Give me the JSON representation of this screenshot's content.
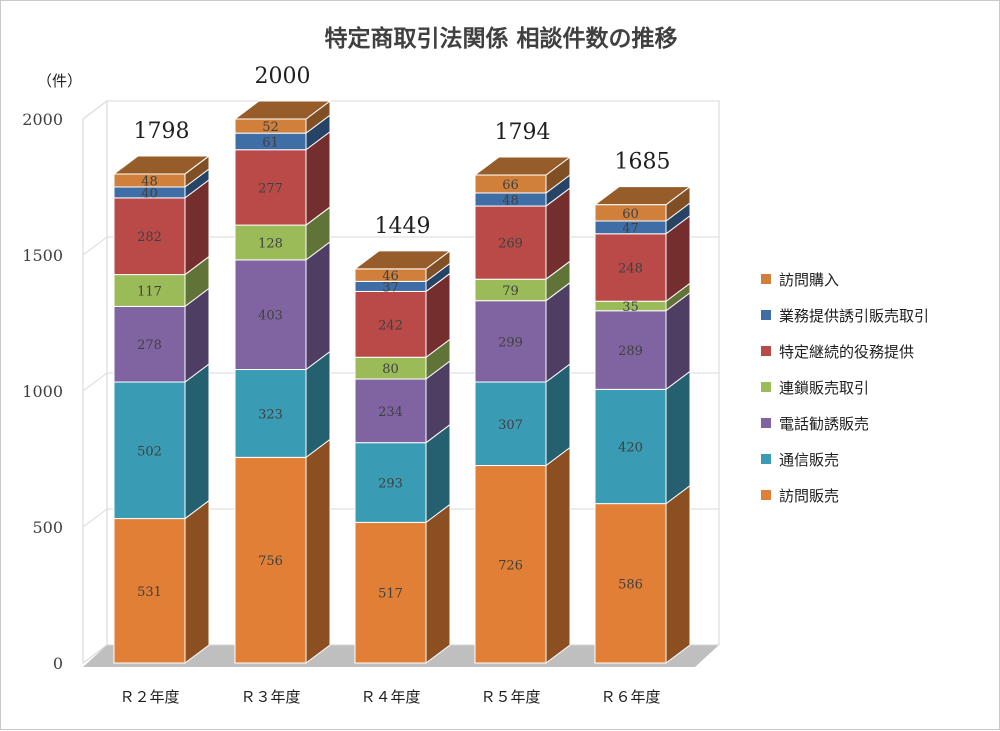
{
  "chart_data": {
    "type": "bar",
    "stacked": true,
    "three_d": true,
    "title": "特定商取引法関係 相談件数の推移",
    "ylabel": "（件）",
    "xlabel": "",
    "ylim": [
      0,
      2000
    ],
    "yticks": [
      0,
      500,
      1000,
      1500,
      2000
    ],
    "categories": [
      "Ｒ２年度",
      "Ｒ３年度",
      "Ｒ４年度",
      "Ｒ５年度",
      "Ｒ６年度"
    ],
    "totals": [
      1798,
      2000,
      1449,
      1794,
      1685
    ],
    "legend_position": "right",
    "series": [
      {
        "name": "訪問販売",
        "values": [
          531,
          756,
          517,
          726,
          586
        ],
        "color": "#E07F35"
      },
      {
        "name": "通信販売",
        "values": [
          502,
          323,
          293,
          307,
          420
        ],
        "color": "#3A9BB4"
      },
      {
        "name": "電話勧誘販売",
        "values": [
          278,
          403,
          234,
          299,
          289
        ],
        "color": "#8064A2"
      },
      {
        "name": "連鎖販売取引",
        "values": [
          117,
          128,
          80,
          79,
          35
        ],
        "color": "#9BBB59"
      },
      {
        "name": "特定継続的役務提供",
        "values": [
          282,
          277,
          242,
          269,
          248
        ],
        "color": "#B94A48"
      },
      {
        "name": "業務提供誘引販売取引",
        "values": [
          40,
          61,
          37,
          48,
          47
        ],
        "color": "#3F6DA6"
      },
      {
        "name": "訪問購入",
        "values": [
          48,
          52,
          46,
          66,
          60
        ],
        "color": "#D0803A"
      }
    ]
  }
}
